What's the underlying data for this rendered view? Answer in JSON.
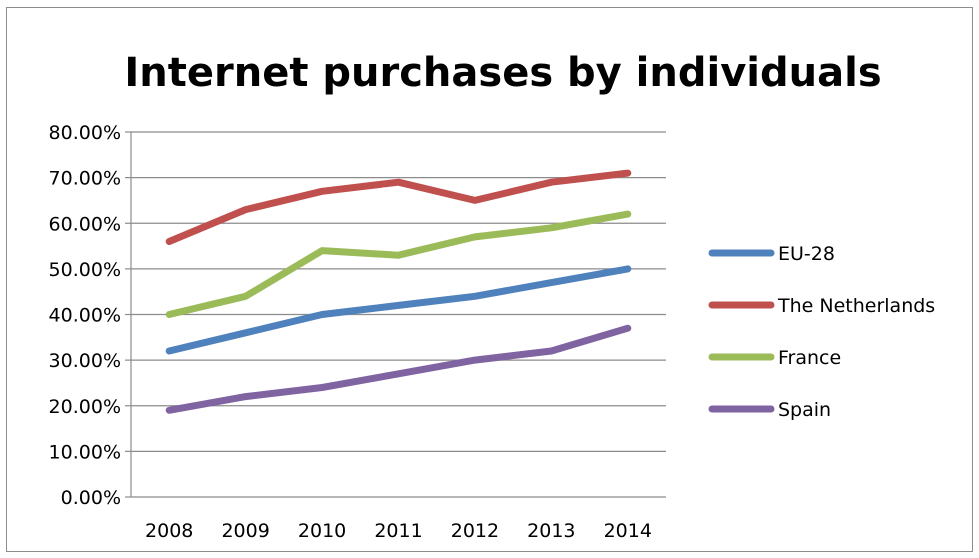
{
  "chart_data": {
    "type": "line",
    "title": "Internet purchases by individuals",
    "categories": [
      "2008",
      "2009",
      "2010",
      "2011",
      "2012",
      "2013",
      "2014"
    ],
    "y_ticks": [
      "0.00%",
      "10.00%",
      "20.00%",
      "30.00%",
      "40.00%",
      "50.00%",
      "60.00%",
      "70.00%",
      "80.00%"
    ],
    "ylim": [
      0,
      80
    ],
    "grid": true,
    "legend_position": "right",
    "series": [
      {
        "name": "EU-28",
        "color": "#4f81bd",
        "values": [
          32,
          36,
          40,
          42,
          44,
          47,
          50
        ]
      },
      {
        "name": "The Netherlands",
        "color": "#c0504d",
        "values": [
          56,
          63,
          67,
          69,
          65,
          69,
          71
        ]
      },
      {
        "name": "France",
        "color": "#9bbb59",
        "values": [
          40,
          44,
          54,
          53,
          57,
          59,
          62
        ]
      },
      {
        "name": "Spain",
        "color": "#8064a2",
        "values": [
          19,
          22,
          24,
          27,
          30,
          32,
          37
        ]
      }
    ]
  }
}
